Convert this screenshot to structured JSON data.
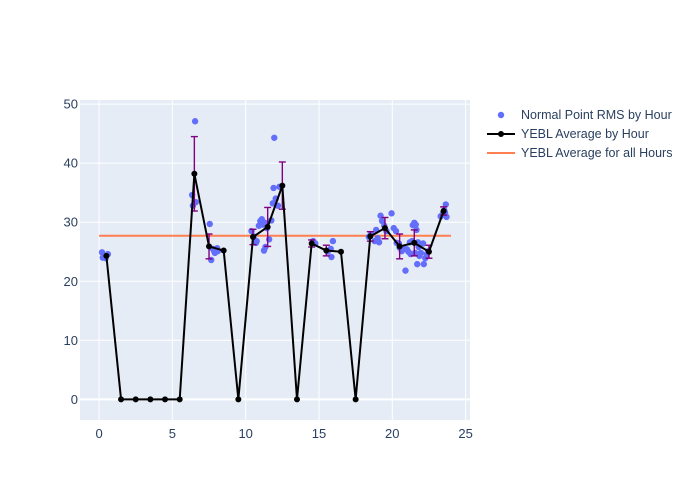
{
  "chart_data": {
    "type": "scatter",
    "title": "",
    "xlabel": "",
    "ylabel": "",
    "xlim": [
      -1.3,
      25.3
    ],
    "ylim": [
      -3.5,
      50.7
    ],
    "grid": true,
    "x_ticks": [
      0,
      5,
      10,
      15,
      20,
      25
    ],
    "x_tick_labels": [
      "0",
      "5",
      "10",
      "15",
      "20",
      "25"
    ],
    "y_ticks": [
      0,
      10,
      20,
      30,
      40,
      50
    ],
    "y_tick_labels": [
      "0",
      "10",
      "20",
      "30",
      "40",
      "50"
    ],
    "legend_position": "right",
    "series": [
      {
        "name": "Normal Point RMS by Hour",
        "kind": "scatter",
        "color": "#636efa",
        "points": [
          [
            0.2,
            24.9
          ],
          [
            0.25,
            24.0
          ],
          [
            0.35,
            24.3
          ],
          [
            0.45,
            23.9
          ],
          [
            0.6,
            24.6
          ],
          [
            6.35,
            34.6
          ],
          [
            6.4,
            32.8
          ],
          [
            6.55,
            47.1
          ],
          [
            6.6,
            33.4
          ],
          [
            7.55,
            29.7
          ],
          [
            7.65,
            23.6
          ],
          [
            7.75,
            25.5
          ],
          [
            7.85,
            25.1
          ],
          [
            7.9,
            24.8
          ],
          [
            8.05,
            25.6
          ],
          [
            8.1,
            25.1
          ],
          [
            10.4,
            28.5
          ],
          [
            10.55,
            27.6
          ],
          [
            10.7,
            26.5
          ],
          [
            10.75,
            26.8
          ],
          [
            10.9,
            29.4
          ],
          [
            11.0,
            30.2
          ],
          [
            11.1,
            30.5
          ],
          [
            11.2,
            29.6
          ],
          [
            11.25,
            25.2
          ],
          [
            11.3,
            29.9
          ],
          [
            11.35,
            25.8
          ],
          [
            11.45,
            29.0
          ],
          [
            11.6,
            27.1
          ],
          [
            11.75,
            30.3
          ],
          [
            11.85,
            33.2
          ],
          [
            11.9,
            35.8
          ],
          [
            11.95,
            44.3
          ],
          [
            12.05,
            34.0
          ],
          [
            12.2,
            32.8
          ],
          [
            12.3,
            36.0
          ],
          [
            14.6,
            26.8
          ],
          [
            14.75,
            26.4
          ],
          [
            15.6,
            25.0
          ],
          [
            15.8,
            25.5
          ],
          [
            15.85,
            24.1
          ],
          [
            15.95,
            26.8
          ],
          [
            18.4,
            27.5
          ],
          [
            18.55,
            28.0
          ],
          [
            18.8,
            26.8
          ],
          [
            18.9,
            28.7
          ],
          [
            19.0,
            27.3
          ],
          [
            19.1,
            26.6
          ],
          [
            19.2,
            31.1
          ],
          [
            19.3,
            30.2
          ],
          [
            19.45,
            29.4
          ],
          [
            19.6,
            28.5
          ],
          [
            19.95,
            31.5
          ],
          [
            20.1,
            29.0
          ],
          [
            20.25,
            28.5
          ],
          [
            20.3,
            26.5
          ],
          [
            20.45,
            26.4
          ],
          [
            20.5,
            25.7
          ],
          [
            20.65,
            25.1
          ],
          [
            20.8,
            25.6
          ],
          [
            20.9,
            21.8
          ],
          [
            21.0,
            25.4
          ],
          [
            21.1,
            25.0
          ],
          [
            21.2,
            26.6
          ],
          [
            21.25,
            24.6
          ],
          [
            21.35,
            26.8
          ],
          [
            21.4,
            29.5
          ],
          [
            21.5,
            29.9
          ],
          [
            21.55,
            24.8
          ],
          [
            21.6,
            29.6
          ],
          [
            21.65,
            28.7
          ],
          [
            21.7,
            22.9
          ],
          [
            21.75,
            26.6
          ],
          [
            21.8,
            25.8
          ],
          [
            21.85,
            24.3
          ],
          [
            21.95,
            24.8
          ],
          [
            22.1,
            26.4
          ],
          [
            22.15,
            22.9
          ],
          [
            22.25,
            23.9
          ],
          [
            22.35,
            24.6
          ],
          [
            22.45,
            25.1
          ],
          [
            23.3,
            31.0
          ],
          [
            23.45,
            31.5
          ],
          [
            23.55,
            32.0
          ],
          [
            23.6,
            31.6
          ],
          [
            23.65,
            33.0
          ],
          [
            23.7,
            30.9
          ]
        ]
      },
      {
        "name": "YEBL Average by Hour",
        "kind": "line",
        "color": "#000000",
        "x": [
          0.5,
          1.5,
          2.5,
          3.5,
          4.5,
          5.5,
          6.5,
          7.5,
          8.5,
          9.5,
          10.5,
          11.5,
          12.5,
          13.5,
          14.5,
          15.5,
          16.5,
          17.5,
          18.5,
          19.5,
          20.5,
          21.5,
          22.5,
          23.5
        ],
        "y": [
          24.3,
          0,
          0,
          0,
          0,
          0,
          38.2,
          25.9,
          25.2,
          0,
          27.5,
          29.2,
          36.2,
          0,
          26.4,
          25.2,
          25.0,
          0,
          27.6,
          29.0,
          25.9,
          26.5,
          25.0,
          31.9
        ],
        "error": [
          null,
          null,
          null,
          null,
          null,
          null,
          6.3,
          2.1,
          null,
          null,
          1.3,
          3.3,
          4.0,
          null,
          0.6,
          0.9,
          null,
          null,
          0.8,
          1.8,
          2.1,
          2.2,
          1.1,
          0.7
        ]
      },
      {
        "name": "YEBL Average for all Hours",
        "kind": "hline",
        "color": "#ff7f50",
        "y": 27.7,
        "x_range": [
          0,
          24
        ]
      }
    ]
  }
}
